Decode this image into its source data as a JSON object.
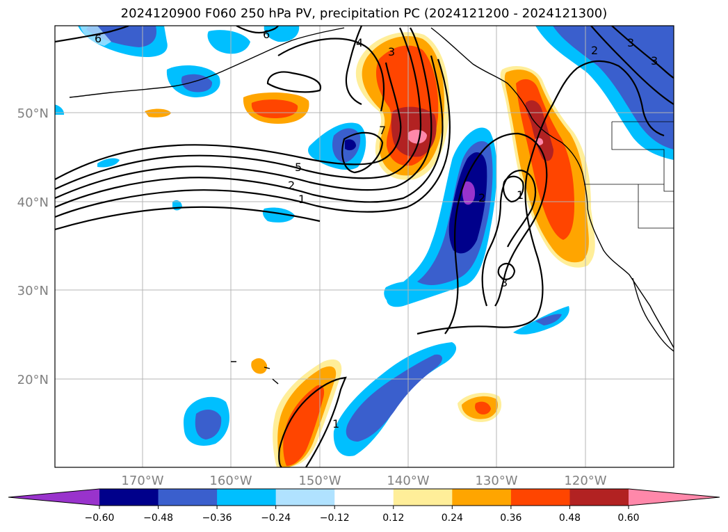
{
  "title": "2024120900 F060 250 hPa PV, precipitation PC (2024121200 - 2024121300)",
  "lat_labels": [
    "50°N",
    "40°N",
    "30°N",
    "20°N"
  ],
  "lon_labels": [
    "170°W",
    "160°W",
    "150°W",
    "140°W",
    "130°W",
    "120°W"
  ],
  "colorbar": {
    "ticks": [
      "−0.60",
      "−0.48",
      "−0.36",
      "−0.24",
      "−0.12",
      "0.12",
      "0.24",
      "0.36",
      "0.48",
      "0.60"
    ],
    "colors": [
      "#9933cc",
      "#00008b",
      "#3a5fcd",
      "#00bfff",
      "#b0e2ff",
      "#ffffff",
      "#ffee99",
      "#ffa500",
      "#ff4500",
      "#b22222",
      "#ff88aa"
    ]
  },
  "contour_labels": [
    "6",
    "6",
    "4",
    "3",
    "5",
    "2",
    "1",
    "7",
    "1",
    "2",
    "3",
    "3",
    "2",
    "3",
    "1"
  ]
}
